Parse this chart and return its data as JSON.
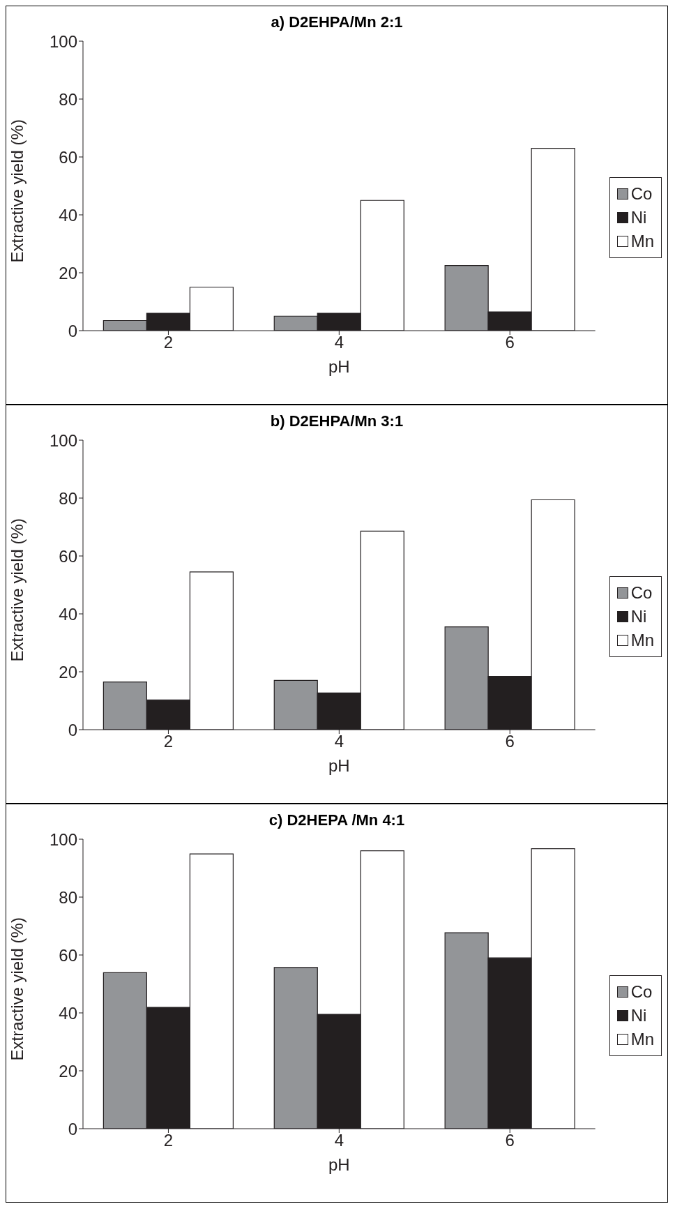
{
  "chart_data": [
    {
      "type": "bar",
      "title": "a) D2EHPA/Mn 2:1",
      "xlabel": "pH",
      "ylabel": "Extractive yield (%)",
      "categories": [
        "2",
        "4",
        "6"
      ],
      "series": [
        {
          "name": "Co",
          "color": "#939598",
          "values": [
            3.5,
            5,
            22.5
          ]
        },
        {
          "name": "Ni",
          "color": "#231f20",
          "values": [
            6,
            6,
            6.5
          ]
        },
        {
          "name": "Mn",
          "color": "#ffffff",
          "values": [
            15,
            45,
            63
          ]
        }
      ],
      "ylim": [
        0,
        100
      ],
      "yticks": [
        0,
        20,
        40,
        60,
        80,
        100
      ],
      "grid": false,
      "legend": "right"
    },
    {
      "type": "bar",
      "title": "b) D2EHPA/Mn 3:1",
      "xlabel": "pH",
      "ylabel": "Extractive yield (%)",
      "categories": [
        "2",
        "4",
        "6"
      ],
      "series": [
        {
          "name": "Co",
          "color": "#939598",
          "values": [
            16.5,
            17,
            35.5
          ]
        },
        {
          "name": "Ni",
          "color": "#231f20",
          "values": [
            10.3,
            12.7,
            18.4
          ]
        },
        {
          "name": "Mn",
          "color": "#ffffff",
          "values": [
            54.5,
            68.6,
            79.4
          ]
        }
      ],
      "ylim": [
        0,
        100
      ],
      "yticks": [
        0,
        20,
        40,
        60,
        80,
        100
      ],
      "grid": false,
      "legend": "right"
    },
    {
      "type": "bar",
      "title": "c) D2HEPA /Mn 4:1",
      "xlabel": "pH",
      "ylabel": "Extractive yield (%)",
      "categories": [
        "2",
        "4",
        "6"
      ],
      "series": [
        {
          "name": "Co",
          "color": "#939598",
          "values": [
            53.9,
            55.7,
            67.7
          ]
        },
        {
          "name": "Ni",
          "color": "#231f20",
          "values": [
            41.9,
            39.5,
            59
          ]
        },
        {
          "name": "Mn",
          "color": "#ffffff",
          "values": [
            94.9,
            96,
            96.7
          ]
        }
      ],
      "ylim": [
        0,
        100
      ],
      "yticks": [
        0,
        20,
        40,
        60,
        80,
        100
      ],
      "grid": false,
      "legend": "right"
    }
  ]
}
